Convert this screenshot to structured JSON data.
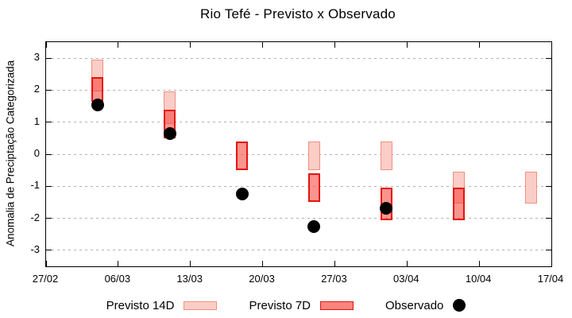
{
  "title": "Rio Tefé - Previsto x Observado",
  "y_axis": {
    "label": "Anomalia de Preciptação Categorizada",
    "tick_values": [
      3,
      2,
      1,
      0,
      -1,
      -2,
      -3
    ],
    "tick_labels": [
      "3",
      "2",
      "1",
      "0",
      "-1",
      "-2",
      "-3"
    ],
    "range": [
      -3.5,
      3.5
    ]
  },
  "x_axis": {
    "tick_labels": [
      "27/02",
      "06/03",
      "13/03",
      "20/03",
      "27/03",
      "03/04",
      "10/04",
      "17/04"
    ],
    "tick_days": [
      0,
      7,
      14,
      21,
      28,
      35,
      42,
      49
    ],
    "range_days": [
      0,
      49
    ]
  },
  "legend": {
    "items": [
      {
        "label": "Previsto 14D",
        "swatch": "box-14d"
      },
      {
        "label": "Previsto 7D",
        "swatch": "box-7d"
      },
      {
        "label": "Observado",
        "swatch": "dot"
      }
    ]
  },
  "colors": {
    "previsto_14d_fill": "#fbcdc7",
    "previsto_14d_border": "#f0907f",
    "previsto_7d_fill": "#f8857e",
    "previsto_7d_fill_overlay": "rgba(246,60,50,0.55)",
    "previsto_7d_border": "#e41410",
    "overlap_fill": "#f87d74",
    "observado": "#000000",
    "grid": "#b3b3b3",
    "axis": "#000000",
    "background": "#ffffff"
  },
  "chart_data": {
    "type": "bar",
    "subtype": "weekly forecast ranges (floating bars) plus observed scatter dots",
    "title": "Rio Tefé - Previsto x Observado",
    "xlabel": "",
    "ylabel": "Anomalia de Preciptação Categorizada",
    "ylim": [
      -3.5,
      3.5
    ],
    "grid": true,
    "legend_position": "bottom",
    "x_tick_labels": [
      "27/02",
      "06/03",
      "13/03",
      "20/03",
      "27/03",
      "03/04",
      "10/04",
      "17/04"
    ],
    "categories": [
      "04/03",
      "11/03",
      "18/03",
      "25/03",
      "01/04",
      "08/04",
      "15/04"
    ],
    "category_days_from_start": [
      5,
      12,
      19,
      26,
      33,
      40,
      47
    ],
    "series": [
      {
        "name": "Previsto 14D",
        "type": "range_bar",
        "ranges_low_high": [
          [
            1.95,
            2.95
          ],
          [
            0.95,
            1.95
          ],
          null,
          [
            -0.5,
            0.4
          ],
          [
            -0.5,
            0.4
          ],
          [
            -1.55,
            -0.55
          ],
          [
            -1.55,
            -0.55
          ]
        ]
      },
      {
        "name": "Previsto 7D",
        "type": "range_bar",
        "ranges_low_high": [
          [
            1.65,
            2.4
          ],
          [
            0.5,
            1.4
          ],
          [
            -0.5,
            0.4
          ],
          [
            -1.5,
            -0.6
          ],
          [
            -2.05,
            -1.05
          ],
          [
            -2.05,
            -1.05
          ],
          null
        ]
      },
      {
        "name": "Observado",
        "type": "scatter",
        "values": [
          1.55,
          0.65,
          -1.25,
          -2.25,
          -1.7,
          null,
          null
        ]
      }
    ]
  }
}
